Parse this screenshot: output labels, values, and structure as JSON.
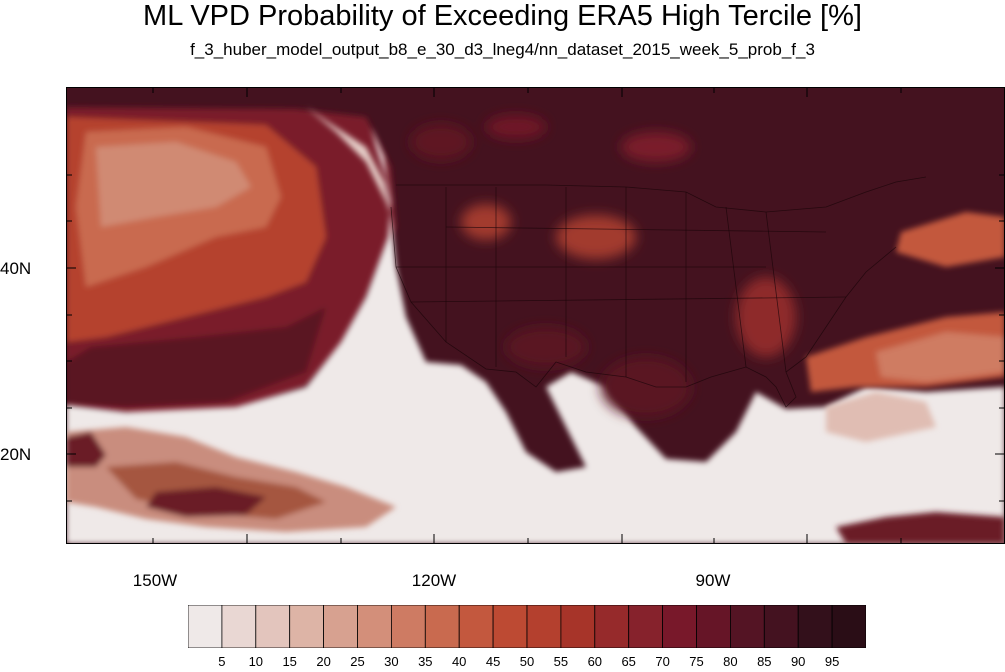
{
  "title": "ML VPD Probability of Exceeding ERA5 High Tercile [%]",
  "subtitle": "f_3_huber_model_output_b8_e_30_d3_lneg4/nn_dataset_2015_week_5_prob_f_3",
  "x_axis": {
    "tick_labels": [
      "150W",
      "120W",
      "90W"
    ]
  },
  "y_axis": {
    "tick_labels": [
      "40N",
      "20N"
    ]
  },
  "colorbar": {
    "labels": [
      "5",
      "10",
      "15",
      "20",
      "25",
      "30",
      "35",
      "40",
      "45",
      "50",
      "55",
      "60",
      "65",
      "70",
      "75",
      "80",
      "85",
      "90",
      "95"
    ],
    "colors": [
      "#efe9e8",
      "#e9d7d3",
      "#e3c5bd",
      "#ddb4a6",
      "#d7a190",
      "#d38f7a",
      "#ce7b63",
      "#c96a4f",
      "#c3583e",
      "#bd4a33",
      "#b4402e",
      "#a73429",
      "#962a2b",
      "#86222c",
      "#78182a",
      "#661527",
      "#541424",
      "#441220",
      "#33101b",
      "#2a0d16"
    ]
  }
}
